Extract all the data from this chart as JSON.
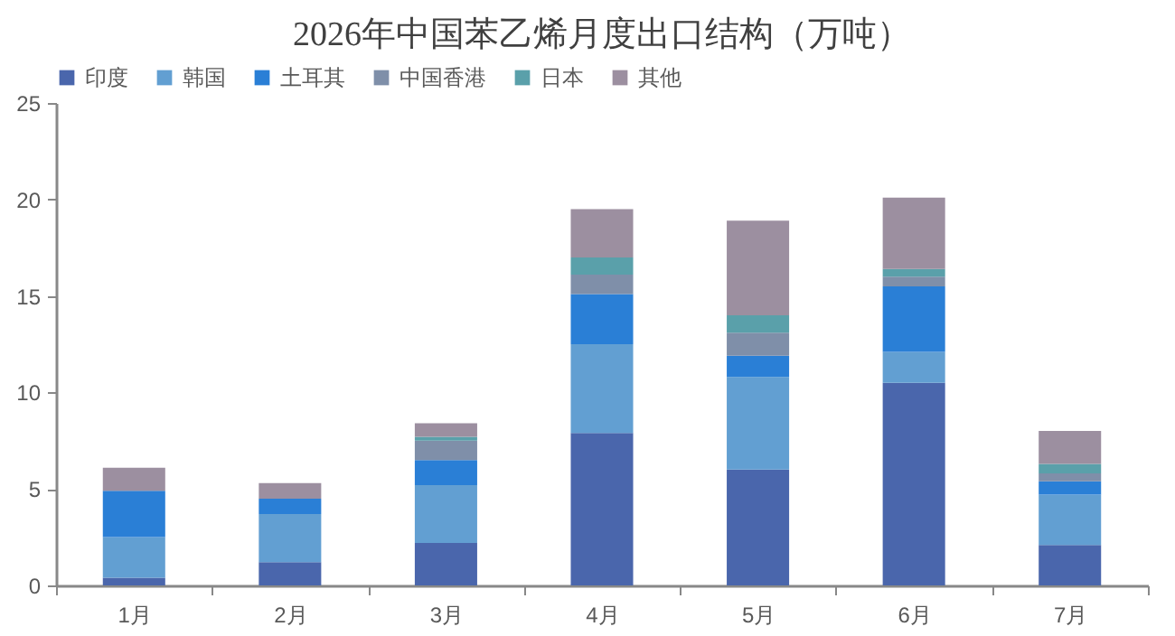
{
  "chart_data": {
    "type": "bar",
    "title": "2026年中国苯乙烯月度出口结构（万吨）",
    "categories": [
      "1月",
      "2月",
      "3月",
      "4月",
      "5月",
      "6月",
      "7月"
    ],
    "stacked": true,
    "legend": "top",
    "grid": false,
    "ylim": [
      0,
      25
    ],
    "yticks": [
      0,
      5,
      10,
      15,
      20,
      25
    ],
    "series": [
      {
        "name": "印度",
        "color": "#4a66ac",
        "values": [
          0.4,
          1.2,
          2.2,
          7.9,
          6.0,
          10.5,
          2.1
        ]
      },
      {
        "name": "韩国",
        "color": "#629fd2",
        "values": [
          2.1,
          2.5,
          3.0,
          4.6,
          4.8,
          1.6,
          2.6
        ]
      },
      {
        "name": "土耳其",
        "color": "#2a7fd6",
        "values": [
          2.4,
          0.8,
          1.3,
          2.6,
          1.1,
          3.4,
          0.7
        ]
      },
      {
        "name": "中国香港",
        "color": "#7f8fa9",
        "values": [
          0,
          0,
          1.0,
          1.0,
          1.2,
          0.5,
          0.4
        ]
      },
      {
        "name": "日本",
        "color": "#5aa0aa",
        "values": [
          0,
          0,
          0.2,
          0.9,
          0.9,
          0.4,
          0.5
        ]
      },
      {
        "name": "其他",
        "color": "#9c8fa0",
        "values": [
          1.2,
          0.8,
          0.7,
          2.5,
          4.9,
          3.7,
          1.7
        ]
      }
    ]
  }
}
